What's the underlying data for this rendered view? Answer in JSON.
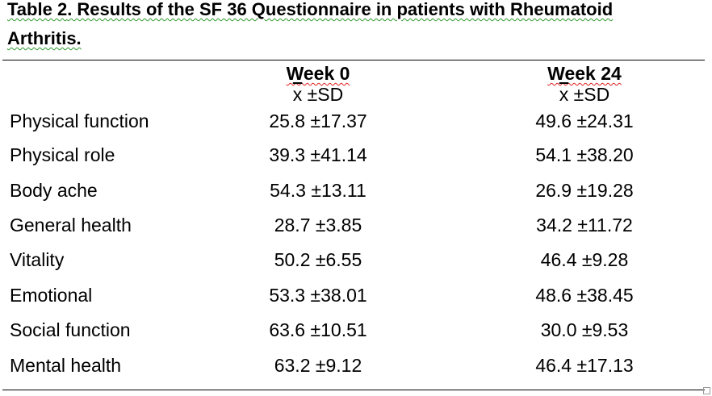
{
  "table": {
    "title_prefix": "Table 2",
    "title_main": ". Results of the SF 36 Questionnaire in patients with Rheumatoid",
    "title_line2": "Arthritis.",
    "columns": [
      {
        "heading": "Week 0",
        "stat_symbol": "x",
        "stat_suffix": " ±SD"
      },
      {
        "heading": "Week 24",
        "stat_symbol": "x",
        "stat_suffix": " ±SD"
      }
    ],
    "rows": [
      {
        "label": "Physical function",
        "week0": "25.8 ±17.37",
        "week24": "49.6 ±24.31"
      },
      {
        "label": "Physical role",
        "week0": "39.3 ±41.14",
        "week24": "54.1 ±38.20"
      },
      {
        "label": "Body ache",
        "week0": "54.3 ±13.11",
        "week24": "26.9 ±19.28"
      },
      {
        "label": "General health",
        "week0": "28.7 ±3.85",
        "week24": "34.2 ±11.72"
      },
      {
        "label": "Vitality",
        "week0": "50.2 ±6.55",
        "week24": "46.4 ±9.28"
      },
      {
        "label": "Emotional",
        "week0": "53.3 ±38.01",
        "week24": "48.6 ±38.45"
      },
      {
        "label": "Social function",
        "week0": "63.6 ±10.51",
        "week24": "30.0 ±9.53"
      },
      {
        "label": "Mental health",
        "week0": "63.2 ±9.12",
        "week24": "46.4 ±17.13"
      }
    ]
  }
}
